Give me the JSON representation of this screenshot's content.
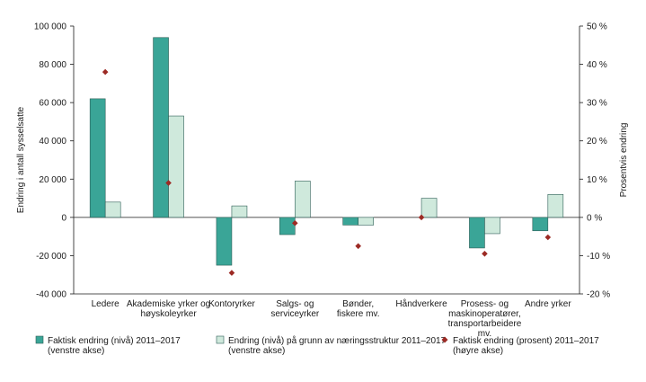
{
  "chart_data": {
    "type": "bar",
    "categories": [
      [
        "Ledere"
      ],
      [
        "Akademiske yrker og",
        "høyskoleyrker"
      ],
      [
        "Kontoryrker"
      ],
      [
        "Salgs- og",
        "serviceyrker"
      ],
      [
        "Bønder,",
        "fiskere mv."
      ],
      [
        "Håndverkere"
      ],
      [
        "Prosess- og",
        "maskinoperatører,",
        "transportarbeidere",
        "mv."
      ],
      [
        "Andre yrker"
      ]
    ],
    "series": [
      {
        "name": [
          "Faktisk endring (nivå) 2011–2017",
          "(venstre akse)"
        ],
        "axis": "left",
        "kind": "bar",
        "color": "#3aa597",
        "values": [
          62000,
          94000,
          -25000,
          -9000,
          -4000,
          0,
          -16000,
          -7000
        ]
      },
      {
        "name": [
          "Endring (nivå) på grunn av næringsstruktur 2011–2017",
          "(venstre akse)"
        ],
        "axis": "left",
        "kind": "bar",
        "color": "#cfe9dc",
        "values": [
          8000,
          53000,
          6000,
          19000,
          -4000,
          10000,
          -8500,
          12000
        ]
      },
      {
        "name": [
          "Faktisk endring (prosent) 2011–2017",
          "(høyre akse)"
        ],
        "axis": "right",
        "kind": "marker",
        "color": "#9c2a24",
        "values": [
          38,
          9,
          -14.5,
          -1.5,
          -7.5,
          0,
          -9.5,
          -5.2
        ]
      }
    ],
    "y_left": {
      "label": "Endring i antall sysselsatte",
      "range": [
        -40000,
        100000
      ],
      "ticks": [
        -40000,
        -20000,
        0,
        20000,
        40000,
        60000,
        80000,
        100000
      ],
      "tick_labels": [
        "-40 000",
        "-20 000",
        "0",
        "20 000",
        "40 000",
        "60 000",
        "80 000",
        "100 000"
      ]
    },
    "y_right": {
      "label": "Prosentvis endring",
      "range": [
        -20,
        50
      ],
      "ticks": [
        -20,
        -10,
        0,
        10,
        20,
        30,
        40,
        50
      ],
      "tick_labels": [
        "-20 %",
        "-10 %",
        "0 %",
        "10 %",
        "20 %",
        "30 %",
        "40 %",
        "50 %"
      ]
    },
    "grid": false,
    "legend": "bottom"
  }
}
